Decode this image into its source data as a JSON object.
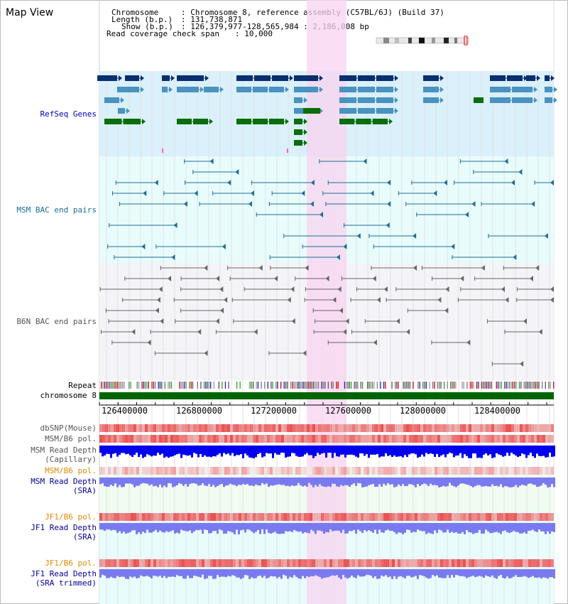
{
  "view_title": "Map View",
  "header": {
    "chromosome_key": "Chromosome",
    "chromosome_val": ": Chromosome 8, reference assembly (C57BL/6J) (Build 37)",
    "length_key": "Length (b.p.)",
    "length_val": ": 131,738,871",
    "show_key": "Show (b.p.)",
    "show_val": ": 126,379,977-128,565,984 : 2,186,008 bp",
    "coverage_key": "Read coverage check span",
    "coverage_val": ": 10,000"
  },
  "tracks": {
    "refseq": "RefSeq Genes",
    "msm_bac": "MSM BAC end pairs",
    "b6n_bac": "B6N BAC end pairs",
    "repeat": "Repeat",
    "chromosome": "chromosome 8",
    "dbsnp": "dbSNP(Mouse)",
    "msm_b6_pol": "MSM/B6 pol.",
    "msm_depth_cap_1": "MSM Read Depth",
    "msm_depth_cap_2": "(Capillary)",
    "msm_b6_pol_sra": "MSM/B6 pol.",
    "msm_depth_sra_1": "MSM Read Depth",
    "msm_depth_sra_2": "(SRA)",
    "jf1_b6_pol": "JF1/B6 pol.",
    "jf1_depth_1": "JF1 Read Depth",
    "jf1_depth_2": "(SRA)",
    "jf1_b6_pol_trim": "JF1/B6 pol.",
    "jf1_depth_trim_1": "JF1 Read Depth",
    "jf1_depth_trim_2": "(SRA trimmed)"
  },
  "axis_ticks": [
    "126400000",
    "126800000",
    "127200000",
    "127600000",
    "128000000",
    "128400000"
  ],
  "colors": {
    "refseq_bg": "#daf0fa",
    "msm_bg": "#e8fcfc",
    "b6n_bg": "#f4f4f8",
    "highlight": "#f8d4f0",
    "gene_dark": "#0a2f6e",
    "gene_mid": "#4a92bf",
    "gene_green": "#0a6e0a",
    "msm_line": "#1e6e94",
    "b6n_line": "#666666",
    "chromosome": "#006400",
    "snp_red": "#e83030",
    "depth_blue": "#0000ee",
    "depth_light": "#7a7af0"
  }
}
